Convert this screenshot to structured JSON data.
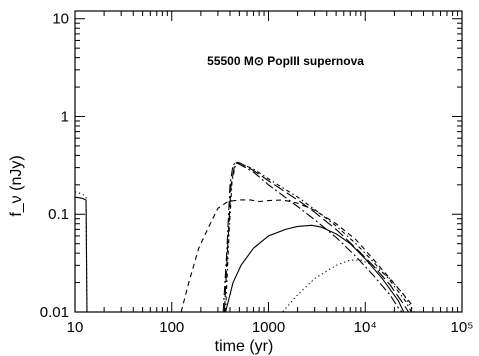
{
  "chart_data": {
    "type": "line",
    "title": "",
    "xlabel": "time (yr)",
    "ylabel": "f_ν (nJy)",
    "xscale": "log",
    "yscale": "log",
    "xlim": [
      10,
      100000
    ],
    "ylim": [
      0.01,
      12
    ],
    "grid": false,
    "x_ticks": [
      {
        "value": 10,
        "label": "10"
      },
      {
        "value": 100,
        "label": "100"
      },
      {
        "value": 1000,
        "label": "1000"
      },
      {
        "value": 10000,
        "label": "10⁴"
      },
      {
        "value": 100000,
        "label": "10⁵"
      }
    ],
    "y_ticks": [
      {
        "value": 0.01,
        "label": "0.01"
      },
      {
        "value": 0.1,
        "label": "0.1"
      },
      {
        "value": 1,
        "label": "1"
      },
      {
        "value": 10,
        "label": "10"
      }
    ],
    "annotation": {
      "text": "55500 M⊙  PopIII supernova",
      "x": 1500,
      "y": 3.7
    },
    "series": [
      {
        "style": "solid",
        "points": [
          [
            10,
            0.15
          ],
          [
            12,
            0.145
          ],
          [
            13,
            0.14
          ],
          [
            13.3,
            0.01
          ],
          [
            360,
            0.01
          ],
          [
            430,
            0.02
          ],
          [
            520,
            0.03
          ],
          [
            700,
            0.045
          ],
          [
            1000,
            0.06
          ],
          [
            1500,
            0.07
          ],
          [
            2000,
            0.075
          ],
          [
            2800,
            0.077
          ],
          [
            3500,
            0.074
          ],
          [
            5000,
            0.063
          ],
          [
            7000,
            0.05
          ],
          [
            10000,
            0.035
          ],
          [
            15000,
            0.022
          ],
          [
            22000,
            0.013
          ],
          [
            25000,
            0.01
          ]
        ]
      },
      {
        "style": "dotted",
        "points": [
          [
            10,
            0.17
          ],
          [
            12,
            0.16
          ],
          [
            13,
            0.15
          ],
          [
            13.3,
            0.01
          ],
          [
            1400,
            0.01
          ],
          [
            2000,
            0.015
          ],
          [
            3000,
            0.022
          ],
          [
            5000,
            0.03
          ],
          [
            7000,
            0.034
          ],
          [
            9000,
            0.034
          ],
          [
            12000,
            0.03
          ],
          [
            18000,
            0.022
          ],
          [
            25000,
            0.015
          ],
          [
            32000,
            0.01
          ]
        ]
      },
      {
        "style": "dashed",
        "points": [
          [
            125,
            0.01
          ],
          [
            150,
            0.02
          ],
          [
            190,
            0.045
          ],
          [
            250,
            0.08
          ],
          [
            300,
            0.115
          ],
          [
            380,
            0.135
          ],
          [
            500,
            0.14
          ],
          [
            650,
            0.14
          ],
          [
            800,
            0.135
          ],
          [
            1000,
            0.138
          ],
          [
            1400,
            0.14
          ],
          [
            2000,
            0.13
          ],
          [
            3000,
            0.11
          ],
          [
            5000,
            0.08
          ],
          [
            8000,
            0.055
          ],
          [
            12000,
            0.035
          ],
          [
            18000,
            0.022
          ],
          [
            25000,
            0.015
          ],
          [
            30000,
            0.012
          ]
        ]
      },
      {
        "style": "long-dash",
        "points": [
          [
            350,
            0.01
          ],
          [
            380,
            0.05
          ],
          [
            410,
            0.2
          ],
          [
            450,
            0.33
          ],
          [
            480,
            0.34
          ],
          [
            520,
            0.33
          ],
          [
            700,
            0.28
          ],
          [
            1000,
            0.22
          ],
          [
            2000,
            0.14
          ],
          [
            3000,
            0.105
          ],
          [
            5000,
            0.07
          ],
          [
            8000,
            0.045
          ],
          [
            12000,
            0.03
          ],
          [
            18000,
            0.019
          ],
          [
            25000,
            0.012
          ],
          [
            28000,
            0.01
          ]
        ]
      },
      {
        "style": "dash-dot",
        "points": [
          [
            340,
            0.01
          ],
          [
            370,
            0.04
          ],
          [
            400,
            0.2
          ],
          [
            430,
            0.32
          ],
          [
            460,
            0.335
          ],
          [
            500,
            0.325
          ],
          [
            700,
            0.27
          ],
          [
            1000,
            0.2
          ],
          [
            2000,
            0.12
          ],
          [
            3000,
            0.088
          ],
          [
            5000,
            0.058
          ],
          [
            8000,
            0.037
          ],
          [
            12000,
            0.024
          ],
          [
            18000,
            0.015
          ],
          [
            22000,
            0.011
          ],
          [
            24000,
            0.01
          ]
        ]
      },
      {
        "style": "dot-dash",
        "points": [
          [
            360,
            0.01
          ],
          [
            390,
            0.06
          ],
          [
            420,
            0.22
          ],
          [
            460,
            0.33
          ],
          [
            500,
            0.335
          ],
          [
            550,
            0.32
          ],
          [
            700,
            0.29
          ],
          [
            1000,
            0.23
          ],
          [
            2000,
            0.15
          ],
          [
            3000,
            0.112
          ],
          [
            5000,
            0.076
          ],
          [
            8000,
            0.05
          ],
          [
            12000,
            0.033
          ],
          [
            18000,
            0.021
          ],
          [
            26000,
            0.013
          ],
          [
            30000,
            0.01
          ]
        ]
      }
    ]
  }
}
